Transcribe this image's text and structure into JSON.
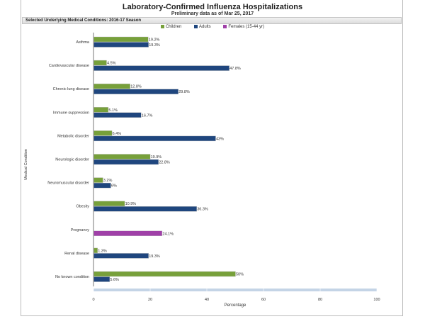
{
  "chart_data": {
    "type": "bar",
    "orientation": "horizontal",
    "title": "Laboratory-Confirmed Influenza Hospitalizations",
    "subtitle": "Preliminary data as of Mar 25, 2017",
    "section_title": "Selected Underlying Medical Conditions: 2016-17 Season",
    "xlabel": "Percentage",
    "ylabel": "Medical Condition",
    "xlim": [
      0,
      100
    ],
    "xticks": [
      0,
      20,
      40,
      60,
      80,
      100
    ],
    "legend_position": "top",
    "categories": [
      "Asthma",
      "Cardiovascular disease",
      "Chronic lung disease",
      "Immune suppression",
      "Metabolic disorder",
      "Neurologic disorder",
      "Neuromuscular disorder",
      "Obesity",
      "Pregnancy",
      "Renal disease",
      "No known condition"
    ],
    "series": [
      {
        "name": "Children",
        "color": "#77a03a",
        "values": [
          19.2,
          4.5,
          12.8,
          5.1,
          6.4,
          19.9,
          3.2,
          10.9,
          null,
          1.3,
          50
        ],
        "labels": [
          "19.2%",
          "4.5%",
          "12.8%",
          "5.1%",
          "6.4%",
          "19.9%",
          "3.2%",
          "10.9%",
          null,
          "1.3%",
          "50%"
        ]
      },
      {
        "name": "Adults",
        "color": "#1f467e",
        "values": [
          19.3,
          47.8,
          29.8,
          16.7,
          43,
          22.8,
          6,
          36.3,
          null,
          19.3,
          5.6
        ],
        "labels": [
          "19.3%",
          "47.8%",
          "29.8%",
          "16.7%",
          "43%",
          "22.8%",
          "6%",
          "36.3%",
          null,
          "19.3%",
          "5.6%"
        ]
      },
      {
        "name": "Females (15-44 yr)",
        "color": "#a040a8",
        "values": [
          null,
          null,
          null,
          null,
          null,
          null,
          null,
          null,
          24.1,
          null,
          null
        ],
        "labels": [
          null,
          null,
          null,
          null,
          null,
          null,
          null,
          null,
          "24.1%",
          null,
          null
        ]
      }
    ]
  }
}
